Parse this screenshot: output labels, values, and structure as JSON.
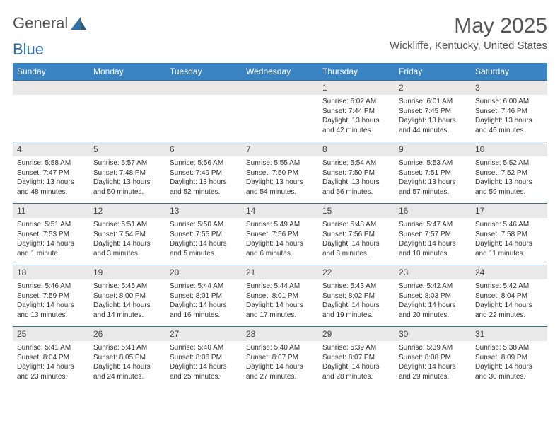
{
  "logo": {
    "text1": "General",
    "text2": "Blue"
  },
  "title": "May 2025",
  "location": "Wickliffe, Kentucky, United States",
  "colors": {
    "header_bg": "#3b84c4",
    "header_text": "#ffffff",
    "daynum_bg": "#e9e9e9",
    "border": "#3b6f99",
    "logo_blue": "#2f6fa7",
    "text": "#333333"
  },
  "weekdays": [
    "Sunday",
    "Monday",
    "Tuesday",
    "Wednesday",
    "Thursday",
    "Friday",
    "Saturday"
  ],
  "first_weekday_index": 4,
  "days": [
    {
      "n": 1,
      "sunrise": "6:02 AM",
      "sunset": "7:44 PM",
      "daylight": "13 hours and 42 minutes."
    },
    {
      "n": 2,
      "sunrise": "6:01 AM",
      "sunset": "7:45 PM",
      "daylight": "13 hours and 44 minutes."
    },
    {
      "n": 3,
      "sunrise": "6:00 AM",
      "sunset": "7:46 PM",
      "daylight": "13 hours and 46 minutes."
    },
    {
      "n": 4,
      "sunrise": "5:58 AM",
      "sunset": "7:47 PM",
      "daylight": "13 hours and 48 minutes."
    },
    {
      "n": 5,
      "sunrise": "5:57 AM",
      "sunset": "7:48 PM",
      "daylight": "13 hours and 50 minutes."
    },
    {
      "n": 6,
      "sunrise": "5:56 AM",
      "sunset": "7:49 PM",
      "daylight": "13 hours and 52 minutes."
    },
    {
      "n": 7,
      "sunrise": "5:55 AM",
      "sunset": "7:50 PM",
      "daylight": "13 hours and 54 minutes."
    },
    {
      "n": 8,
      "sunrise": "5:54 AM",
      "sunset": "7:50 PM",
      "daylight": "13 hours and 56 minutes."
    },
    {
      "n": 9,
      "sunrise": "5:53 AM",
      "sunset": "7:51 PM",
      "daylight": "13 hours and 57 minutes."
    },
    {
      "n": 10,
      "sunrise": "5:52 AM",
      "sunset": "7:52 PM",
      "daylight": "13 hours and 59 minutes."
    },
    {
      "n": 11,
      "sunrise": "5:51 AM",
      "sunset": "7:53 PM",
      "daylight": "14 hours and 1 minute."
    },
    {
      "n": 12,
      "sunrise": "5:51 AM",
      "sunset": "7:54 PM",
      "daylight": "14 hours and 3 minutes."
    },
    {
      "n": 13,
      "sunrise": "5:50 AM",
      "sunset": "7:55 PM",
      "daylight": "14 hours and 5 minutes."
    },
    {
      "n": 14,
      "sunrise": "5:49 AM",
      "sunset": "7:56 PM",
      "daylight": "14 hours and 6 minutes."
    },
    {
      "n": 15,
      "sunrise": "5:48 AM",
      "sunset": "7:56 PM",
      "daylight": "14 hours and 8 minutes."
    },
    {
      "n": 16,
      "sunrise": "5:47 AM",
      "sunset": "7:57 PM",
      "daylight": "14 hours and 10 minutes."
    },
    {
      "n": 17,
      "sunrise": "5:46 AM",
      "sunset": "7:58 PM",
      "daylight": "14 hours and 11 minutes."
    },
    {
      "n": 18,
      "sunrise": "5:46 AM",
      "sunset": "7:59 PM",
      "daylight": "14 hours and 13 minutes."
    },
    {
      "n": 19,
      "sunrise": "5:45 AM",
      "sunset": "8:00 PM",
      "daylight": "14 hours and 14 minutes."
    },
    {
      "n": 20,
      "sunrise": "5:44 AM",
      "sunset": "8:01 PM",
      "daylight": "14 hours and 16 minutes."
    },
    {
      "n": 21,
      "sunrise": "5:44 AM",
      "sunset": "8:01 PM",
      "daylight": "14 hours and 17 minutes."
    },
    {
      "n": 22,
      "sunrise": "5:43 AM",
      "sunset": "8:02 PM",
      "daylight": "14 hours and 19 minutes."
    },
    {
      "n": 23,
      "sunrise": "5:42 AM",
      "sunset": "8:03 PM",
      "daylight": "14 hours and 20 minutes."
    },
    {
      "n": 24,
      "sunrise": "5:42 AM",
      "sunset": "8:04 PM",
      "daylight": "14 hours and 22 minutes."
    },
    {
      "n": 25,
      "sunrise": "5:41 AM",
      "sunset": "8:04 PM",
      "daylight": "14 hours and 23 minutes."
    },
    {
      "n": 26,
      "sunrise": "5:41 AM",
      "sunset": "8:05 PM",
      "daylight": "14 hours and 24 minutes."
    },
    {
      "n": 27,
      "sunrise": "5:40 AM",
      "sunset": "8:06 PM",
      "daylight": "14 hours and 25 minutes."
    },
    {
      "n": 28,
      "sunrise": "5:40 AM",
      "sunset": "8:07 PM",
      "daylight": "14 hours and 27 minutes."
    },
    {
      "n": 29,
      "sunrise": "5:39 AM",
      "sunset": "8:07 PM",
      "daylight": "14 hours and 28 minutes."
    },
    {
      "n": 30,
      "sunrise": "5:39 AM",
      "sunset": "8:08 PM",
      "daylight": "14 hours and 29 minutes."
    },
    {
      "n": 31,
      "sunrise": "5:38 AM",
      "sunset": "8:09 PM",
      "daylight": "14 hours and 30 minutes."
    }
  ],
  "labels": {
    "sunrise": "Sunrise: ",
    "sunset": "Sunset: ",
    "daylight": "Daylight: "
  }
}
